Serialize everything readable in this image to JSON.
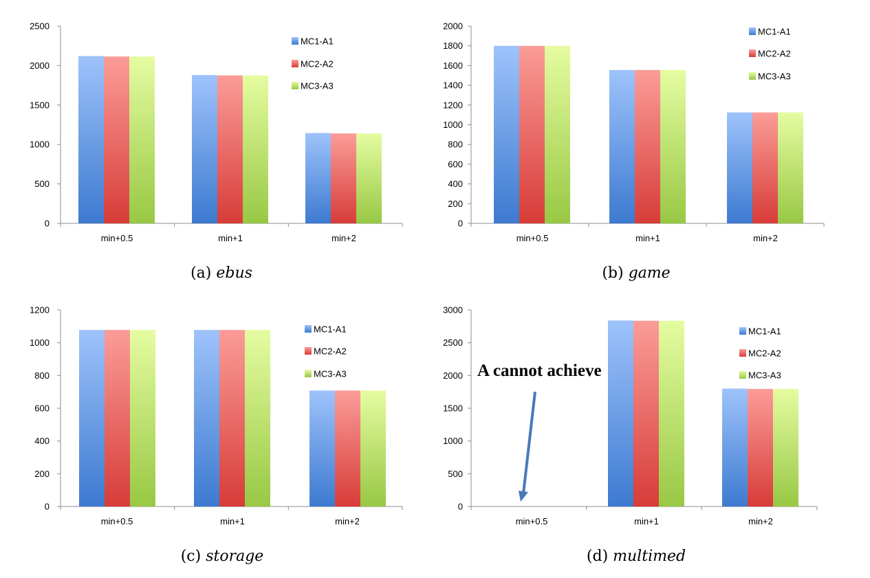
{
  "colors": {
    "MC1-A1": {
      "dark": "#3d7ad0",
      "light": "#9ec3fb"
    },
    "MC2-A2": {
      "dark": "#d73c38",
      "light": "#fb9c98"
    },
    "MC3-A3": {
      "dark": "#98c844",
      "light": "#e5fca1"
    },
    "axis": "#8c8c8c",
    "arrow": "#4a79b8"
  },
  "chart_data": [
    {
      "type": "bar",
      "caption_label": "(a)",
      "caption_name": "ebus",
      "categories": [
        "min+0.5",
        "min+1",
        "min+2"
      ],
      "series": [
        {
          "name": "MC1-A1",
          "values": [
            2120,
            1880,
            1145
          ]
        },
        {
          "name": "MC2-A2",
          "values": [
            2115,
            1875,
            1140
          ]
        },
        {
          "name": "MC3-A3",
          "values": [
            2115,
            1875,
            1140
          ]
        }
      ],
      "ylim": [
        0,
        2500
      ],
      "yticks": [
        0,
        500,
        1000,
        1500,
        2000,
        2500
      ],
      "legend_position": "right"
    },
    {
      "type": "bar",
      "caption_label": "(b)",
      "caption_name": "game",
      "categories": [
        "min+0.5",
        "min+1",
        "min+2"
      ],
      "series": [
        {
          "name": "MC1-A1",
          "values": [
            1800,
            1555,
            1125
          ]
        },
        {
          "name": "MC2-A2",
          "values": [
            1800,
            1555,
            1125
          ]
        },
        {
          "name": "MC3-A3",
          "values": [
            1800,
            1555,
            1125
          ]
        }
      ],
      "ylim": [
        0,
        2000
      ],
      "yticks": [
        0,
        200,
        400,
        600,
        800,
        1000,
        1200,
        1400,
        1600,
        1800,
        2000
      ],
      "legend_position": "top-right"
    },
    {
      "type": "bar",
      "caption_label": "(c)",
      "caption_name": "storage",
      "categories": [
        "min+0.5",
        "min+1",
        "min+2"
      ],
      "series": [
        {
          "name": "MC1-A1",
          "values": [
            1078,
            1078,
            708
          ]
        },
        {
          "name": "MC2-A2",
          "values": [
            1078,
            1078,
            708
          ]
        },
        {
          "name": "MC3-A3",
          "values": [
            1078,
            1078,
            708
          ]
        }
      ],
      "ylim": [
        0,
        1200
      ],
      "yticks": [
        0,
        200,
        400,
        600,
        800,
        1000,
        1200
      ],
      "legend_position": "right"
    },
    {
      "type": "bar",
      "caption_label": "(d)",
      "caption_name": "multimed",
      "categories": [
        "min+0.5",
        "min+1",
        "min+2"
      ],
      "series": [
        {
          "name": "MC1-A1",
          "values": [
            0,
            2840,
            1800
          ]
        },
        {
          "name": "MC2-A2",
          "values": [
            0,
            2835,
            1795
          ]
        },
        {
          "name": "MC3-A3",
          "values": [
            0,
            2835,
            1795
          ]
        }
      ],
      "ylim": [
        0,
        3000
      ],
      "yticks": [
        0,
        500,
        1000,
        1500,
        2000,
        2500,
        3000
      ],
      "legend_position": "right",
      "annotation": "A cannot achieve"
    }
  ]
}
